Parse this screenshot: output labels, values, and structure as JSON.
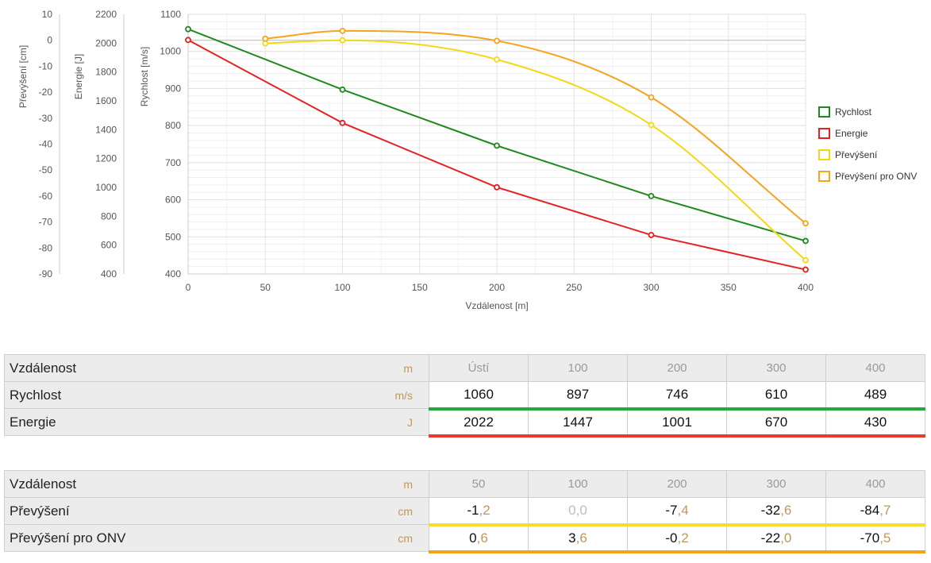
{
  "chart_data": {
    "type": "line",
    "xlabel": "Vzdálenost [m]",
    "xlim": [
      0,
      400
    ],
    "x_ticks": [
      "0",
      "50",
      "100",
      "150",
      "200",
      "250",
      "300",
      "350",
      "400"
    ],
    "grid": true,
    "legend_position": "right",
    "axes": {
      "rychlost": {
        "label": "Rychlost [m/s]",
        "range": [
          400,
          1100
        ],
        "ticks": [
          "1100",
          "1000",
          "900",
          "800",
          "700",
          "600",
          "500",
          "400"
        ]
      },
      "energie": {
        "label": "Energie [J]",
        "range": [
          400,
          2200
        ],
        "ticks": [
          "2200",
          "2000",
          "1800",
          "1600",
          "1400",
          "1200",
          "1000",
          "800",
          "600",
          "400"
        ]
      },
      "prevyseni": {
        "label": "Převýšení [cm]",
        "range": [
          -90,
          10
        ],
        "ticks": [
          "10",
          "0",
          "-10",
          "-20",
          "-30",
          "-40",
          "-50",
          "-60",
          "-70",
          "-80",
          "-90"
        ]
      }
    },
    "series": [
      {
        "name": "Rychlost",
        "axis": "rychlost",
        "color": "#1e8a1e",
        "x": [
          0,
          100,
          200,
          300,
          400
        ],
        "values": [
          1060,
          897,
          746,
          610,
          489
        ]
      },
      {
        "name": "Energie",
        "axis": "energie",
        "color": "#e52222",
        "x": [
          0,
          100,
          200,
          300,
          400
        ],
        "values": [
          2022,
          1447,
          1001,
          670,
          430
        ]
      },
      {
        "name": "Převýšení",
        "axis": "prevyseni",
        "color": "#f5d815",
        "x": [
          50,
          100,
          200,
          300,
          400
        ],
        "values": [
          -1.2,
          0.0,
          -7.4,
          -32.6,
          -84.7
        ]
      },
      {
        "name": "Převýšení pro ONV",
        "axis": "prevyseni",
        "color": "#f5a41e",
        "x": [
          50,
          100,
          200,
          300,
          400
        ],
        "values": [
          0.6,
          3.6,
          -0.2,
          -22.0,
          -70.5
        ]
      }
    ]
  },
  "table1": {
    "rows": [
      {
        "label": "Vzdálenost",
        "unit": "m",
        "cells": [
          "Ústí",
          "100",
          "200",
          "300",
          "400"
        ]
      },
      {
        "label": "Rychlost",
        "unit": "m/s",
        "cells": [
          "1060",
          "897",
          "746",
          "610",
          "489"
        ],
        "color": "#22aa3a"
      },
      {
        "label": "Energie",
        "unit": "J",
        "cells": [
          "2022",
          "1447",
          "1001",
          "670",
          "430"
        ],
        "color": "#e83b2e"
      }
    ]
  },
  "table2": {
    "rows": [
      {
        "label": "Vzdálenost",
        "unit": "m",
        "cells": [
          "50",
          "100",
          "200",
          "300",
          "400"
        ]
      },
      {
        "label": "Převýšení",
        "unit": "cm",
        "cells": [
          [
            "-1",
            ",2"
          ],
          [
            "0",
            ",0"
          ],
          [
            "-7",
            ",4"
          ],
          [
            "-32",
            ",6"
          ],
          [
            "-84",
            ",7"
          ]
        ],
        "color": "#f7dc2a"
      },
      {
        "label": "Převýšení pro ONV",
        "unit": "cm",
        "cells": [
          [
            "0",
            ",6"
          ],
          [
            "3",
            ",6"
          ],
          [
            "-0",
            ",2"
          ],
          [
            "-22",
            ",0"
          ],
          [
            "-70",
            ",5"
          ]
        ],
        "color": "#f5a11a"
      }
    ]
  }
}
